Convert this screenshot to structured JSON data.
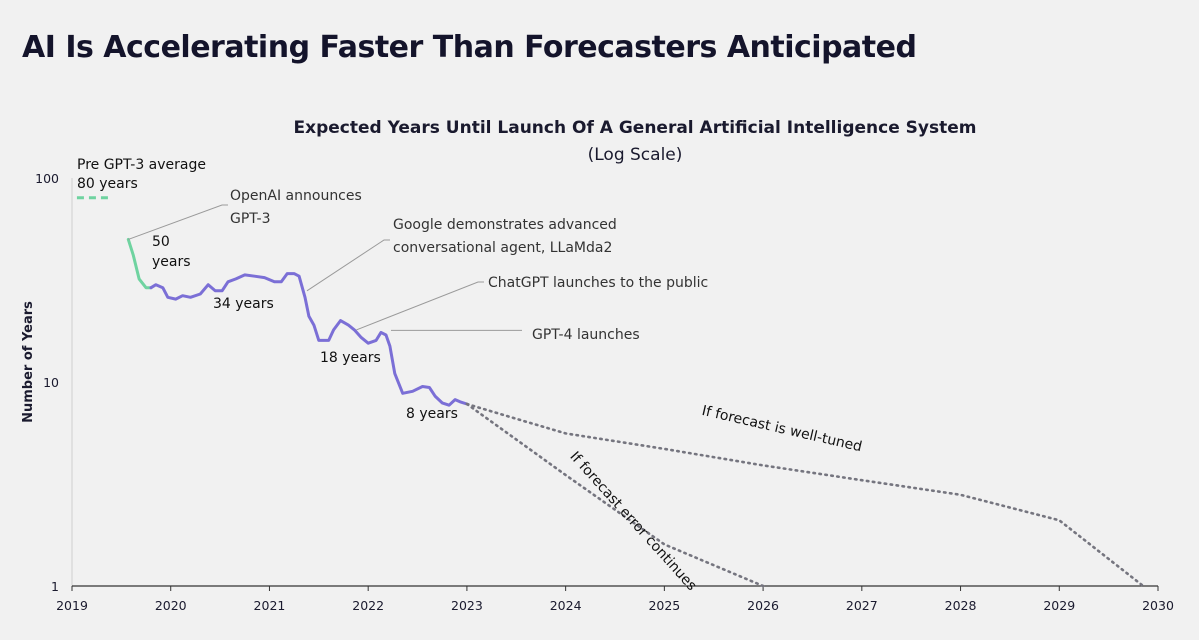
{
  "header": {
    "title": "AI Is Accelerating Faster Than Forecasters Anticipated"
  },
  "colors": {
    "background": "#f1f1f1",
    "pre_gpt3_green": "#6fd3a0",
    "forecast_purple": "#7b6fd6",
    "projection_gray": "#75757f",
    "leader_gray": "#9a9a9a"
  },
  "chart_data": {
    "type": "line",
    "title": "Expected Years Until Launch Of A General Artificial Intelligence System",
    "subtitle": "(Log Scale)",
    "xlabel": "",
    "ylabel": "Number of Years",
    "yscale": "log",
    "xlim": [
      2019,
      2030
    ],
    "ylim": [
      1,
      100
    ],
    "x_ticks": [
      "2019",
      "2020",
      "2021",
      "2022",
      "2023",
      "2024",
      "2025",
      "2026",
      "2027",
      "2028",
      "2029",
      "2030"
    ],
    "y_ticks": [
      "1",
      "10",
      "100"
    ],
    "baseline": {
      "name": "Pre GPT-3 average",
      "label_line1": "Pre GPT-3 average",
      "label_line2": "80 years",
      "value": 80,
      "x": [
        2019.05,
        2019.4
      ]
    },
    "series": [
      {
        "name": "Pre-forecast drop (GPT-3)",
        "color": "#6fd3a0",
        "points": [
          [
            2019.57,
            50
          ],
          [
            2019.62,
            42
          ],
          [
            2019.68,
            32
          ],
          [
            2019.75,
            29
          ],
          [
            2019.8,
            29
          ]
        ]
      },
      {
        "name": "Forecast (years until AGI)",
        "color": "#7b6fd6",
        "points": [
          [
            2019.8,
            29
          ],
          [
            2019.85,
            30
          ],
          [
            2019.92,
            29
          ],
          [
            2019.97,
            26
          ],
          [
            2020.05,
            25.5
          ],
          [
            2020.12,
            26.5
          ],
          [
            2020.2,
            26
          ],
          [
            2020.3,
            27
          ],
          [
            2020.38,
            30
          ],
          [
            2020.45,
            28
          ],
          [
            2020.52,
            28
          ],
          [
            2020.58,
            31
          ],
          [
            2020.66,
            32
          ],
          [
            2020.75,
            33.5
          ],
          [
            2020.85,
            33
          ],
          [
            2020.95,
            32.5
          ],
          [
            2021.05,
            31
          ],
          [
            2021.12,
            31
          ],
          [
            2021.18,
            34
          ],
          [
            2021.25,
            34
          ],
          [
            2021.3,
            33
          ],
          [
            2021.36,
            26
          ],
          [
            2021.4,
            21
          ],
          [
            2021.45,
            19
          ],
          [
            2021.5,
            16
          ],
          [
            2021.55,
            16
          ],
          [
            2021.6,
            16
          ],
          [
            2021.65,
            18
          ],
          [
            2021.72,
            20
          ],
          [
            2021.8,
            19
          ],
          [
            2021.86,
            18
          ],
          [
            2021.93,
            16.5
          ],
          [
            2022.0,
            15.5
          ],
          [
            2022.08,
            16
          ],
          [
            2022.13,
            17.5
          ],
          [
            2022.18,
            17
          ],
          [
            2022.22,
            15
          ],
          [
            2022.27,
            11
          ],
          [
            2022.35,
            8.8
          ],
          [
            2022.45,
            9
          ],
          [
            2022.55,
            9.5
          ],
          [
            2022.62,
            9.4
          ],
          [
            2022.68,
            8.5
          ],
          [
            2022.75,
            7.9
          ],
          [
            2022.82,
            7.7
          ],
          [
            2022.88,
            8.2
          ],
          [
            2022.93,
            8
          ],
          [
            2023.0,
            7.8
          ]
        ]
      },
      {
        "name": "If forecast is well-tuned",
        "color": "#75757f",
        "dashed": true,
        "points": [
          [
            2023.0,
            7.8
          ],
          [
            2023.5,
            6.6
          ],
          [
            2024.0,
            5.6
          ],
          [
            2025.0,
            4.7
          ],
          [
            2026.0,
            3.9
          ],
          [
            2027.0,
            3.3
          ],
          [
            2028.0,
            2.8
          ],
          [
            2029.0,
            2.1
          ],
          [
            2029.85,
            1
          ]
        ]
      },
      {
        "name": "If forecast error continues",
        "color": "#75757f",
        "dashed": true,
        "points": [
          [
            2023.0,
            7.8
          ],
          [
            2024.0,
            3.5
          ],
          [
            2025.0,
            1.6
          ],
          [
            2026.0,
            1
          ]
        ]
      }
    ],
    "annotations": [
      {
        "text": [
          "OpenAI announces",
          "GPT-3"
        ],
        "at": [
          2019.57,
          50
        ]
      },
      {
        "text": [
          "Google demonstrates advanced",
          "conversational agent, LLaMda2"
        ],
        "at": [
          2021.38,
          28
        ]
      },
      {
        "text": [
          "ChatGPT launches to the public"
        ],
        "at": [
          2021.88,
          18
        ]
      },
      {
        "text": [
          "GPT-4 launches"
        ],
        "at": [
          2022.15,
          17.5
        ]
      }
    ],
    "value_labels": [
      {
        "text": [
          "50",
          "years"
        ]
      },
      {
        "text": [
          "34 years"
        ]
      },
      {
        "text": [
          "18 years"
        ]
      },
      {
        "text": [
          "8 years"
        ]
      }
    ],
    "projection_labels": [
      {
        "text": "If forecast is well-tuned"
      },
      {
        "text": "If forecast error continues"
      }
    ]
  }
}
